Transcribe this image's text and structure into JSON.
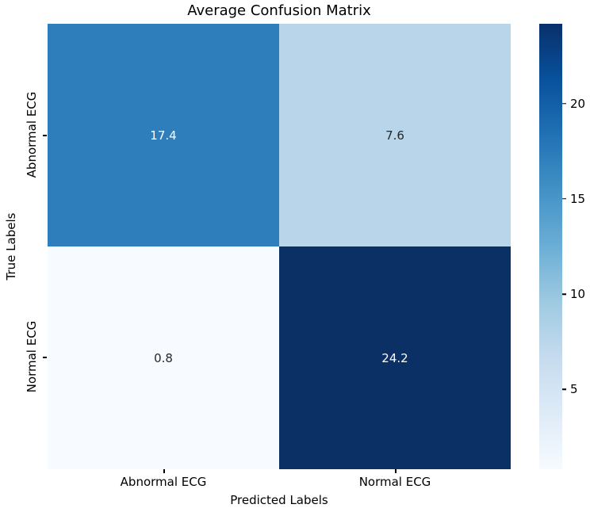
{
  "title": "Average Confusion Matrix",
  "chart_data": {
    "type": "heatmap",
    "title": "Average Confusion Matrix",
    "xlabel": "Predicted Labels",
    "ylabel": "True Labels",
    "x_categories": [
      "Abnormal ECG",
      "Normal ECG"
    ],
    "y_categories": [
      "Abnormal ECG",
      "Normal ECG"
    ],
    "values": [
      [
        17.4,
        7.6
      ],
      [
        0.8,
        24.2
      ]
    ],
    "value_labels": [
      [
        "17.4",
        "7.6"
      ],
      [
        "0.8",
        "24.2"
      ]
    ],
    "colormap": "Blues",
    "vmin": 0.8,
    "vmax": 24.2,
    "colorbar_ticks": [
      5,
      10,
      15,
      20
    ],
    "colorbar_position": "right",
    "grid": false,
    "legend": false
  },
  "cells": [
    {
      "value": "17.4",
      "bg": "#2e7ebc",
      "fg": "#ffffff"
    },
    {
      "value": "7.6",
      "bg": "#b9d5ea",
      "fg": "#262626"
    },
    {
      "value": "0.8",
      "bg": "#f7fbff",
      "fg": "#262626"
    },
    {
      "value": "24.2",
      "bg": "#0a3066",
      "fg": "#ffffff"
    }
  ],
  "colors": {
    "colormap_stops": [
      "#f7fbff",
      "#deebf7",
      "#c6dbef",
      "#9ecae1",
      "#6baed6",
      "#4292c6",
      "#2171b5",
      "#08519c",
      "#08306b"
    ],
    "text": "#000000"
  },
  "axes": {
    "x_label": "Predicted Labels",
    "y_label": "True Labels",
    "x_ticks": [
      "Abnormal ECG",
      "Normal ECG"
    ],
    "y_ticks": [
      "Abnormal ECG",
      "Normal ECG"
    ]
  },
  "colorbar_tick_labels": [
    "5",
    "10",
    "15",
    "20"
  ]
}
